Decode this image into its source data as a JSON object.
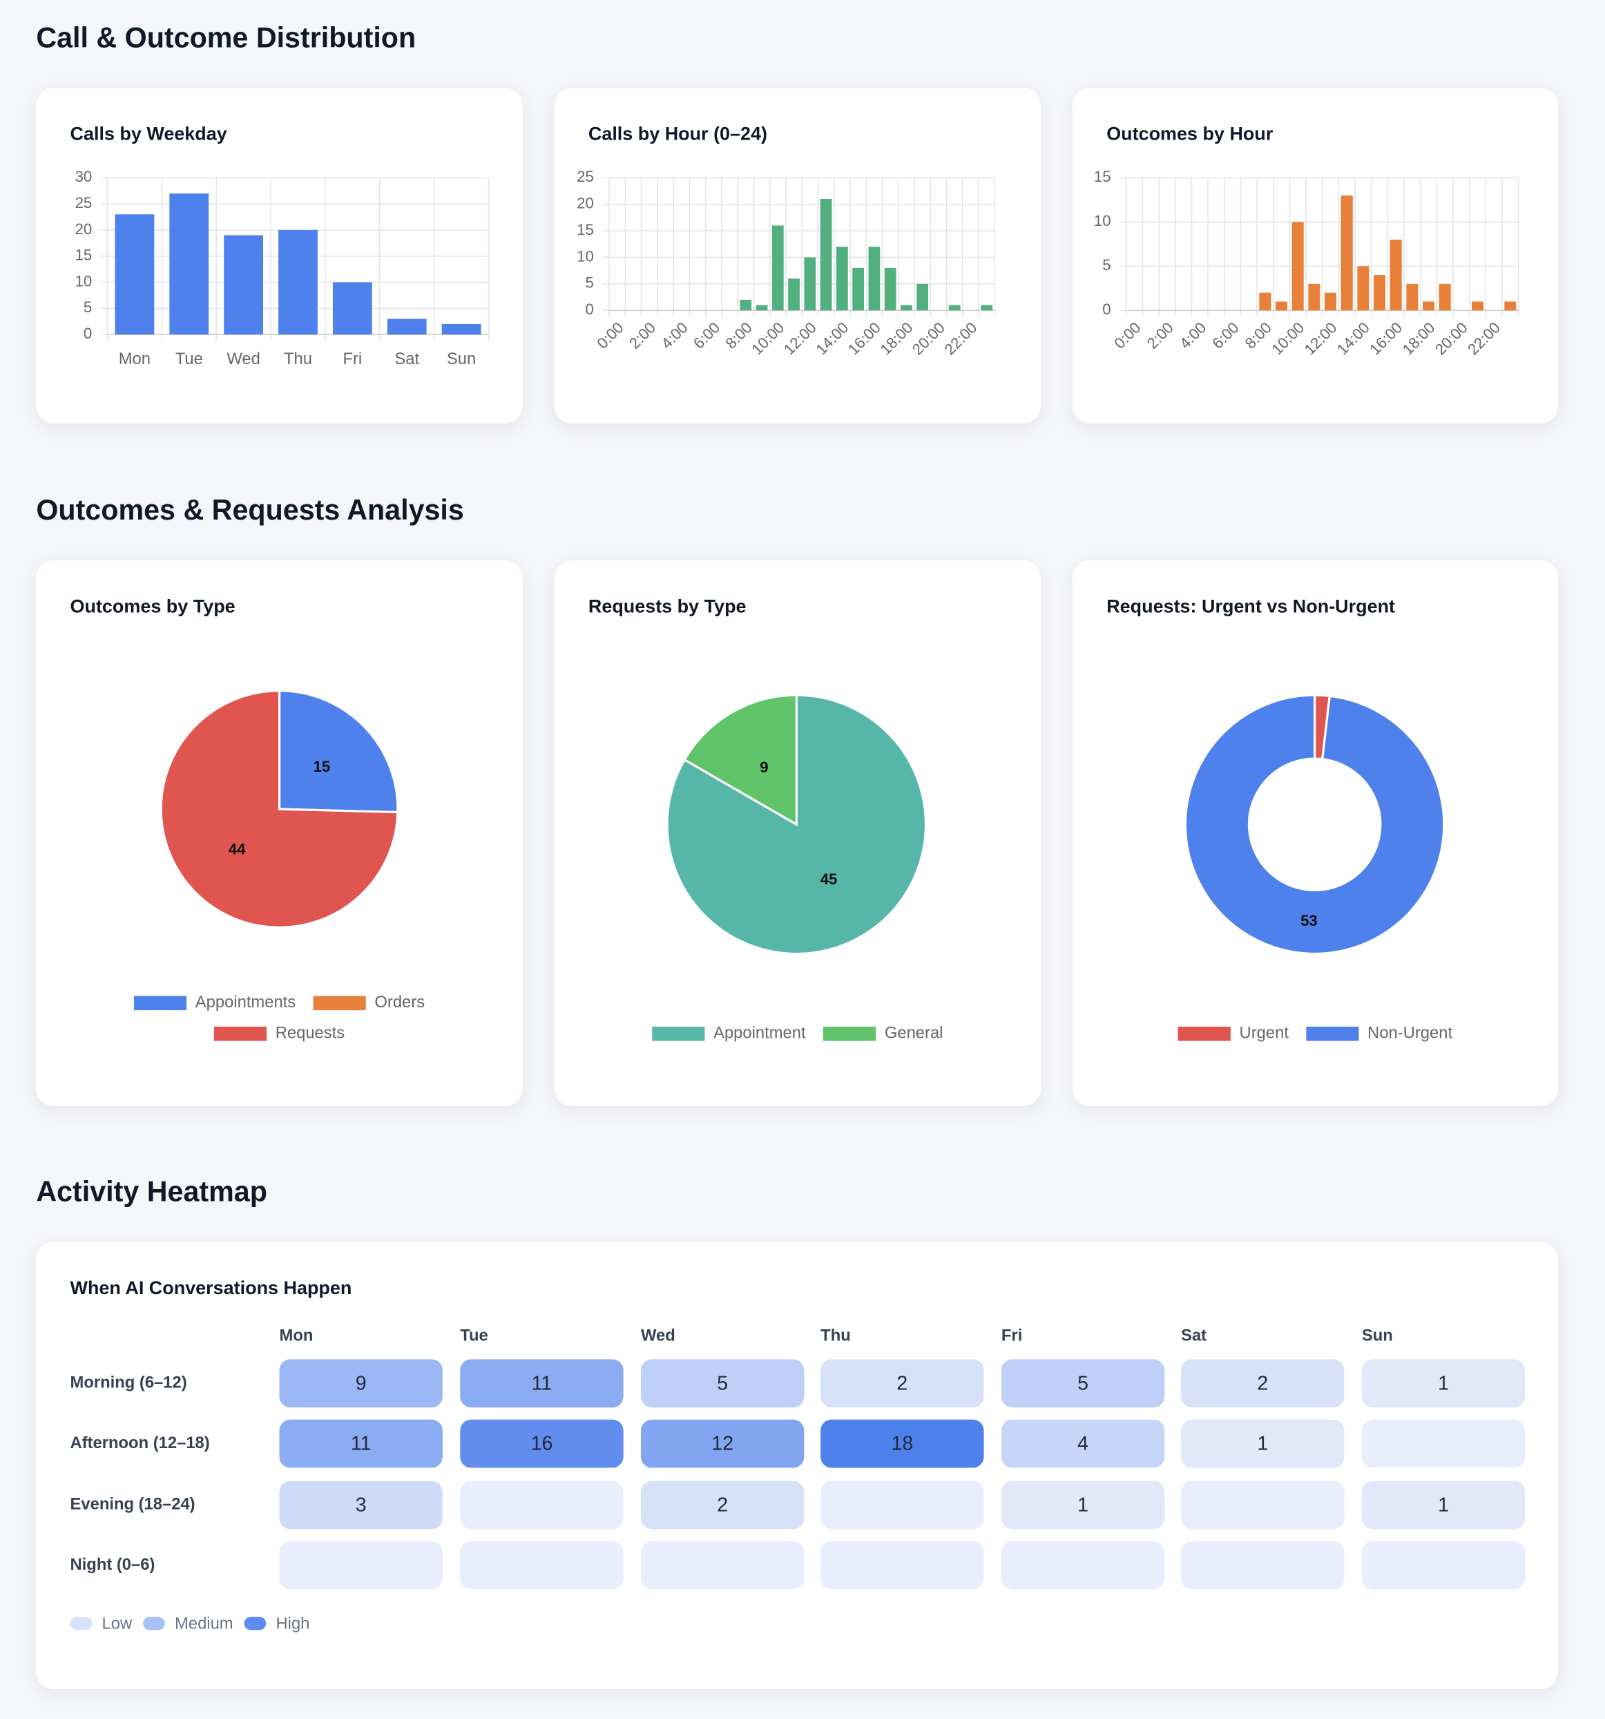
{
  "sections": [
    {
      "title": "Call & Outcome Distribution"
    },
    {
      "title": "Outcomes & Requests Analysis"
    },
    {
      "title": "Activity Heatmap"
    }
  ],
  "chart_data": [
    {
      "type": "bar",
      "title": "Calls by Weekday",
      "categories": [
        "Mon",
        "Tue",
        "Wed",
        "Thu",
        "Fri",
        "Sat",
        "Sun"
      ],
      "values": [
        23,
        27,
        19,
        20,
        10,
        3,
        2
      ],
      "color": "#4f81ec",
      "ylim": [
        0,
        30
      ],
      "yticks": [
        0,
        5,
        10,
        15,
        20,
        25,
        30
      ],
      "grid": true
    },
    {
      "type": "bar",
      "title": "Calls by Hour (0–24)",
      "categories": [
        "0:00",
        null,
        "2:00",
        null,
        "4:00",
        null,
        "6:00",
        null,
        "8:00",
        null,
        "10:00",
        null,
        "12:00",
        null,
        "14:00",
        null,
        "16:00",
        null,
        "18:00",
        null,
        "20:00",
        null,
        "22:00",
        null
      ],
      "values": [
        0,
        0,
        0,
        0,
        0,
        0,
        0,
        0,
        2,
        1,
        16,
        6,
        10,
        21,
        12,
        8,
        12,
        8,
        1,
        5,
        0,
        1,
        0,
        1
      ],
      "color": "#52b07e",
      "ylim": [
        0,
        25
      ],
      "yticks": [
        0,
        5,
        10,
        15,
        20,
        25
      ],
      "grid": true
    },
    {
      "type": "bar",
      "title": "Outcomes by Hour",
      "categories": [
        "0:00",
        null,
        "2:00",
        null,
        "4:00",
        null,
        "6:00",
        null,
        "8:00",
        null,
        "10:00",
        null,
        "12:00",
        null,
        "14:00",
        null,
        "16:00",
        null,
        "18:00",
        null,
        "20:00",
        null,
        "22:00",
        null
      ],
      "values": [
        0,
        0,
        0,
        0,
        0,
        0,
        0,
        0,
        2,
        1,
        10,
        3,
        2,
        13,
        5,
        4,
        8,
        3,
        1,
        3,
        0,
        1,
        0,
        1
      ],
      "color": "#e8803a",
      "ylim": [
        0,
        15
      ],
      "yticks": [
        0,
        5,
        10,
        15
      ],
      "grid": true
    },
    {
      "type": "pie",
      "title": "Outcomes by Type",
      "labels": [
        "Appointments",
        "Orders",
        "Requests"
      ],
      "values": [
        15,
        0,
        44
      ],
      "colors": [
        "#4f81ec",
        "#e8803a",
        "#e05550"
      ]
    },
    {
      "type": "pie",
      "title": "Requests by Type",
      "labels": [
        "Appointment",
        "General"
      ],
      "values": [
        45,
        9
      ],
      "colors": [
        "#56b6a7",
        "#5fc46a"
      ]
    },
    {
      "type": "doughnut",
      "title": "Requests: Urgent vs Non-Urgent",
      "labels": [
        "Urgent",
        "Non-Urgent"
      ],
      "values": [
        1,
        53
      ],
      "colors": [
        "#e05550",
        "#4f81ec"
      ]
    },
    {
      "type": "heatmap",
      "title": "When AI Conversations Happen",
      "columns": [
        "Mon",
        "Tue",
        "Wed",
        "Thu",
        "Fri",
        "Sat",
        "Sun"
      ],
      "rows": [
        "Morning (6–12)",
        "Afternoon (12–18)",
        "Evening (18–24)",
        "Night (0–6)"
      ],
      "values": [
        [
          9,
          11,
          5,
          2,
          5,
          2,
          1
        ],
        [
          11,
          16,
          12,
          18,
          4,
          1,
          null
        ],
        [
          3,
          null,
          2,
          null,
          1,
          null,
          1
        ],
        [
          null,
          null,
          null,
          null,
          null,
          null,
          null
        ]
      ],
      "color": "#4f81ec",
      "legend": [
        {
          "label": "Low",
          "color": "#d6e2fb"
        },
        {
          "label": "Medium",
          "color": "#a9c2f5"
        },
        {
          "label": "High",
          "color": "#5e8bee"
        }
      ]
    }
  ]
}
